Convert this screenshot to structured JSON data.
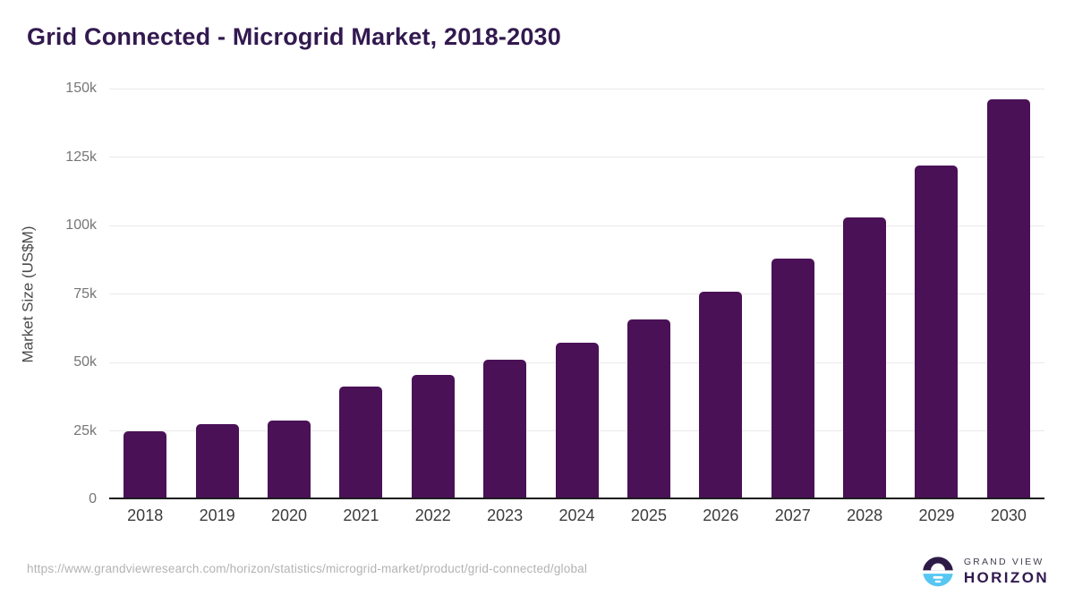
{
  "title": "Grid Connected - Microgrid Market, 2018-2030",
  "chart_data": {
    "type": "bar",
    "title": "Grid Connected - Microgrid Market, 2018-2030",
    "categories": [
      "2018",
      "2019",
      "2020",
      "2021",
      "2022",
      "2023",
      "2024",
      "2025",
      "2026",
      "2027",
      "2028",
      "2029",
      "2030"
    ],
    "values": [
      24300,
      26700,
      28100,
      40400,
      44800,
      50300,
      56700,
      64900,
      75100,
      87100,
      102200,
      121400,
      145400
    ],
    "xlabel": "",
    "ylabel": "Market Size (US$M)",
    "ylim": [
      0,
      150000
    ],
    "yticks": [
      {
        "value": 0,
        "label": "0"
      },
      {
        "value": 25000,
        "label": "25k"
      },
      {
        "value": 50000,
        "label": "50k"
      },
      {
        "value": 75000,
        "label": "75k"
      },
      {
        "value": 100000,
        "label": "100k"
      },
      {
        "value": 125000,
        "label": "125k"
      },
      {
        "value": 150000,
        "label": "150k"
      }
    ],
    "grid": "horizontal",
    "legend": "none",
    "bar_color": "#4a1157"
  },
  "footer": {
    "source_url": "https://www.grandviewresearch.com/horizon/statistics/microgrid-market/product/grid-connected/global",
    "logo": {
      "line1": "GRAND VIEW",
      "line2": "HORIZON",
      "icon": "horizon-sun-icon"
    }
  },
  "colors": {
    "bar": "#4a1157",
    "title": "#32194f",
    "gridline": "#e9e9e9",
    "axis_line": "#1c1c1c",
    "y_tick_text": "#767676",
    "x_tick_text": "#3c3c3c",
    "url_text": "#b3b3b3",
    "logo_blue": "#56c6f2",
    "logo_dark": "#2e1a47"
  }
}
